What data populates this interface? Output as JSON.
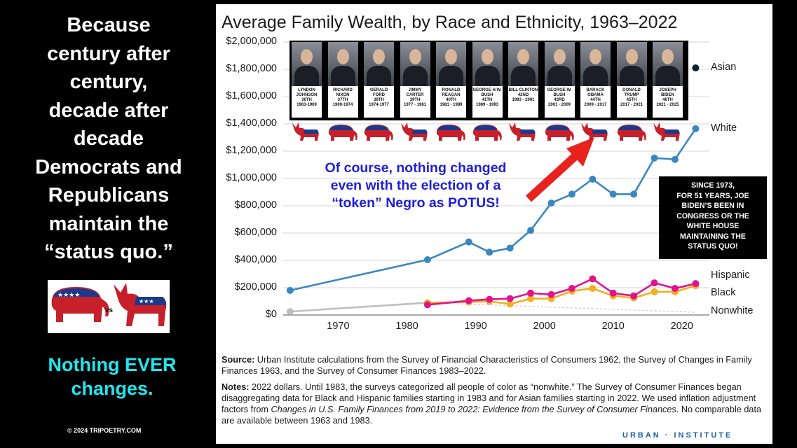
{
  "left_panel": {
    "headline_lines": [
      "Because",
      "century after",
      "century,",
      "decade after",
      "decade",
      "Democrats and",
      "Republicans",
      "maintain the",
      "“status quo.”"
    ],
    "vs_label": "vs",
    "bottom_lines": [
      "Nothing EVER",
      "changes."
    ],
    "copyright": "© 2024 TRIPOETRY.COM"
  },
  "presidents": [
    {
      "caption": [
        "LYNDON",
        "JOHNSON",
        "36TH",
        "1963-1969"
      ],
      "party": "dem"
    },
    {
      "caption": [
        "RICHARD",
        "NIXON",
        "37TH",
        "1969-1974"
      ],
      "party": "rep"
    },
    {
      "caption": [
        "GERALD",
        "FORD",
        "38TH",
        "1974-1977"
      ],
      "party": "rep"
    },
    {
      "caption": [
        "JIMMY CARTER",
        "39TH",
        "1977 - 1981"
      ],
      "party": "dem"
    },
    {
      "caption": [
        "RONALD",
        "REAGAN",
        "40TH",
        "1981 - 1989"
      ],
      "party": "rep"
    },
    {
      "caption": [
        "GEORGE H.W.",
        "BUSH",
        "41TH",
        "1989 - 1993"
      ],
      "party": "rep"
    },
    {
      "caption": [
        "BILL CLINTON",
        "42ND",
        "1993 - 2001"
      ],
      "party": "dem"
    },
    {
      "caption": [
        "GEORGE W.",
        "BUSH",
        "43RD",
        "2001 - 2009"
      ],
      "party": "rep"
    },
    {
      "caption": [
        "BARACK",
        "OBAMA",
        "44TH",
        "2009 - 2017"
      ],
      "party": "dem"
    },
    {
      "caption": [
        "DONALD",
        "TRUMP",
        "45TH",
        "2017 - 2021"
      ],
      "party": "rep"
    },
    {
      "caption": [
        "JOSEPH",
        "BIDEN",
        "46TH",
        "2021 - 2025"
      ],
      "party": "dem"
    }
  ],
  "callout": {
    "lines": [
      "Of course, nothing changed",
      "even with the election of a",
      "“token” Negro as POTUS!"
    ],
    "color": "#1f1fd8",
    "arrow_color": "#e8231e"
  },
  "black_box": {
    "lines": [
      "SINCE 1973,",
      "FOR 51 YEARS, JOE",
      "BIDEN’S BEEN IN",
      "CONGRESS OR THE",
      "WHITE HOUSE",
      "MAINTAINING THE",
      "STATUS QUO!"
    ]
  },
  "source": {
    "label": "Source:",
    "text": " Urban Institute calculations from the Survey of Financial Characteristics of Consumers 1962, the Survey of Changes in Family Finances 1963, and the Survey of Consumer Finances 1983–2022."
  },
  "notes": {
    "label": "Notes:",
    "text_1": " 2022 dollars. Until 1983, the surveys categorized all people of color as “nonwhite.” The Survey of Consumer Finances began disaggregating data for Black and Hispanic families starting in 1983 and for Asian families starting in 2022. We used inflation adjustment factors from ",
    "italic": "Changes in U.S. Family Finances from 2019 to 2022: Evidence from the Survey of Consumer Finances",
    "text_2": ". No comparable data are available between 1963 and 1983."
  },
  "branding": "URBAN · INSTITUTE",
  "chart_data": {
    "type": "line",
    "title": "Average Family Wealth, by Race and Ethnicity, 1963–2022",
    "xlabel": "",
    "ylabel": "",
    "xlim": [
      1962,
      2024
    ],
    "ylim": [
      0,
      2000000
    ],
    "x_ticks": [
      1970,
      1980,
      1990,
      2000,
      2010,
      2020
    ],
    "y_ticks": [
      0,
      200000,
      400000,
      600000,
      800000,
      1000000,
      1200000,
      1400000,
      1600000,
      1800000,
      2000000
    ],
    "y_tick_labels": [
      "$0",
      "$200,000",
      "$400,000",
      "$600,000",
      "$800,000",
      "$1,000,000",
      "$1,200,000",
      "$1,400,000",
      "$1,600,000",
      "$1,800,000",
      "$2,000,000"
    ],
    "grid": true,
    "legend": "direct labels at right",
    "series": [
      {
        "name": "Asian",
        "color": "#0a2233",
        "x": [
          2022
        ],
        "y": [
          1810000
        ]
      },
      {
        "name": "White",
        "color": "#3a87c0",
        "x": [
          1963,
          1983,
          1989,
          1992,
          1995,
          1998,
          2001,
          2004,
          2007,
          2010,
          2013,
          2016,
          2019,
          2022
        ],
        "y": [
          180000,
          405000,
          535000,
          460000,
          490000,
          620000,
          820000,
          885000,
          995000,
          885000,
          885000,
          1150000,
          1140000,
          1365000
        ]
      },
      {
        "name": "Hispanic",
        "color": "#e0148c",
        "x": [
          1983,
          1989,
          1992,
          1995,
          1998,
          2001,
          2004,
          2007,
          2010,
          2013,
          2016,
          2019,
          2022
        ],
        "y": [
          75000,
          105000,
          115000,
          120000,
          160000,
          150000,
          195000,
          265000,
          160000,
          140000,
          235000,
          195000,
          230000
        ]
      },
      {
        "name": "Black",
        "color": "#f2b022",
        "x": [
          1983,
          1989,
          1992,
          1995,
          1998,
          2001,
          2004,
          2007,
          2010,
          2013,
          2016,
          2019,
          2022
        ],
        "y": [
          90000,
          95000,
          100000,
          80000,
          120000,
          120000,
          175000,
          195000,
          140000,
          125000,
          170000,
          170000,
          215000
        ]
      },
      {
        "name": "Nonwhite",
        "color": "#bfbfbf",
        "x": [
          1963,
          1983
        ],
        "y": [
          25000,
          90000
        ]
      }
    ]
  }
}
